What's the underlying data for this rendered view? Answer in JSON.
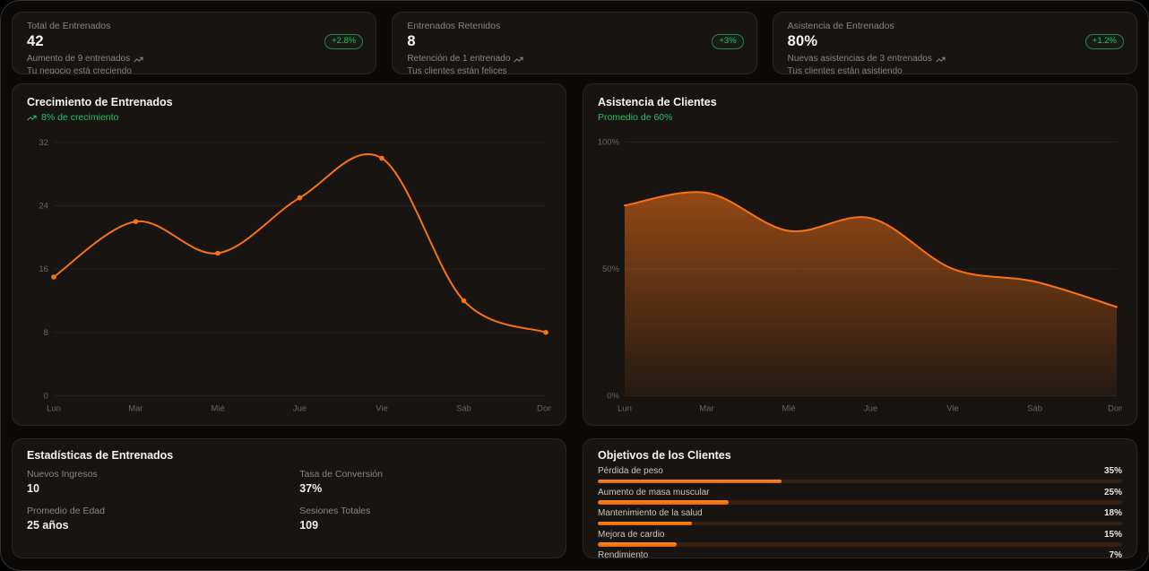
{
  "theme": {
    "page_bg": "#0c0a09",
    "card_bg": "#171412",
    "card_border": "#2a2522",
    "accent_orange": "#f97316",
    "accent_green": "#22c55e",
    "muted_text": "#8b857f",
    "grid_line": "#262019"
  },
  "icons": {
    "trend_up": "trending-up"
  },
  "stat_cards": [
    {
      "label": "Total de Entrenados",
      "value": "42",
      "badge": "+2.8%",
      "trend": "Aumento de 9 entrenados",
      "note": "Tu negocio está creciendo"
    },
    {
      "label": "Entrenados Retenidos",
      "value": "8",
      "badge": "+3%",
      "trend": "Retención de 1 entrenado",
      "note": "Tus clientes están felices"
    },
    {
      "label": "Asistencia de Entrenados",
      "value": "80%",
      "badge": "+1.2%",
      "trend": "Nuevas asistencias de 3 entrenados",
      "note": "Tus clientes están asistiendo"
    }
  ],
  "chart_data": [
    {
      "type": "line",
      "title": "Crecimiento de Entrenados",
      "subtitle": "8% de crecimiento",
      "categories": [
        "Lun",
        "Mar",
        "Mié",
        "Jue",
        "Vie",
        "Sáb",
        "Dom"
      ],
      "values": [
        15,
        22,
        18,
        25,
        30,
        12,
        8
      ],
      "ylim": [
        0,
        33
      ],
      "yticks": [
        0,
        8,
        16,
        24,
        32
      ],
      "ytick_labels": [
        "0",
        "8",
        "16",
        "24",
        "32"
      ],
      "xlabel": "",
      "ylabel": "",
      "grid": true,
      "legend": false,
      "markers": true,
      "line_color": "#f97316"
    },
    {
      "type": "area",
      "title": "Asistencia de Clientes",
      "subtitle": "Promedio de 60%",
      "categories": [
        "Lun",
        "Mar",
        "Mié",
        "Jue",
        "Vie",
        "Sáb",
        "Dom"
      ],
      "values": [
        75,
        80,
        65,
        70,
        50,
        45,
        35
      ],
      "ylim": [
        0,
        103
      ],
      "yticks": [
        0,
        50,
        100
      ],
      "ytick_labels": [
        "0%",
        "50%",
        "100%"
      ],
      "xlabel": "",
      "ylabel": "",
      "grid": true,
      "legend": false,
      "markers": false,
      "line_color": "#f97316",
      "area_gradient": [
        "rgba(249,115,22,0.55)",
        "rgba(249,115,22,0.06)"
      ]
    }
  ],
  "trainee_stats": {
    "title": "Estadísticas de Entrenados",
    "items": [
      {
        "label": "Nuevos Ingresos",
        "value": "10"
      },
      {
        "label": "Tasa de Conversión",
        "value": "37%"
      },
      {
        "label": "Promedio de Edad",
        "value": "25 años"
      },
      {
        "label": "Sesiones Totales",
        "value": "109"
      }
    ]
  },
  "client_goals": {
    "title": "Objetivos de los Clientes",
    "items": [
      {
        "label": "Pérdida de peso",
        "value": 35,
        "display": "35%"
      },
      {
        "label": "Aumento de masa muscular",
        "value": 25,
        "display": "25%"
      },
      {
        "label": "Mantenimiento de la salud",
        "value": 18,
        "display": "18%"
      },
      {
        "label": "Mejora de cardio",
        "value": 15,
        "display": "15%"
      },
      {
        "label": "Rendimiento",
        "value": 7,
        "display": "7%"
      }
    ]
  }
}
